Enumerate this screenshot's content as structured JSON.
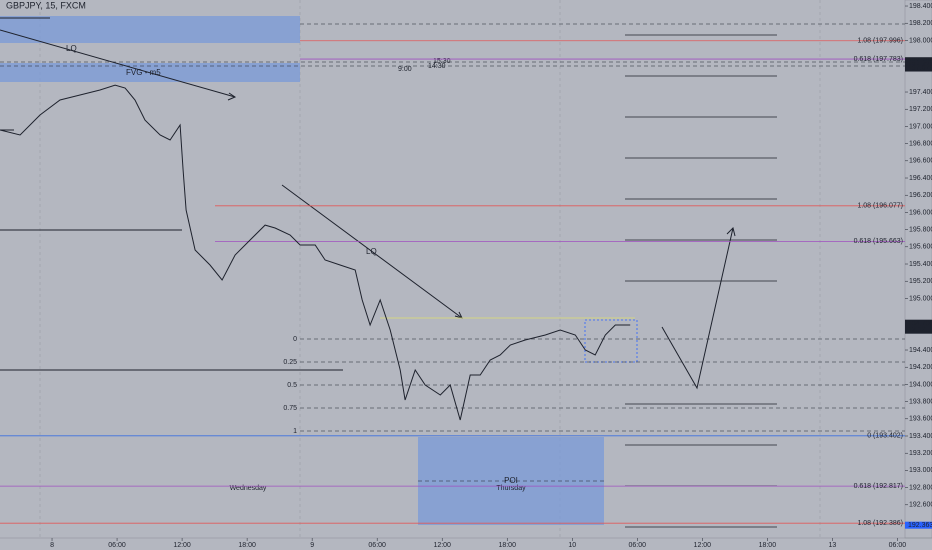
{
  "chart_data": {
    "type": "line",
    "title": "GBPJPY, 15, FXCM",
    "color": "#1e222d",
    "x": [
      -4.8,
      -2.95,
      -1.11,
      0.74,
      2.58,
      4.43,
      5.82,
      6.74,
      7.66,
      8.58,
      9.97,
      10.89,
      11.82,
      12.09,
      12.37,
      13.2,
      14.58,
      15.69,
      16.89,
      18.28,
      19.66,
      20.58,
      21.97,
      22.89,
      24.28,
      25.2,
      26.58,
      27.97,
      28.62,
      29.35,
      30.28,
      31.2,
      32.12,
      32.58,
      33.51,
      34.43,
      35.82,
      36.74,
      37.66,
      38.58,
      39.51,
      40.43,
      41.35,
      42.28,
      43.66,
      45.51,
      46.89,
      48.28,
      49.2,
      50.12,
      51.05,
      51.97,
      53.35
    ],
    "values": [
      196.958,
      196.9,
      197.133,
      197.307,
      197.365,
      197.423,
      197.481,
      197.447,
      197.307,
      197.074,
      196.9,
      196.842,
      197.016,
      196.493,
      196.028,
      195.563,
      195.388,
      195.214,
      195.505,
      195.679,
      195.853,
      195.819,
      195.737,
      195.621,
      195.621,
      195.447,
      195.388,
      195.33,
      194.981,
      194.691,
      194.981,
      194.633,
      194.167,
      193.819,
      194.167,
      193.993,
      193.877,
      193.993,
      193.586,
      194.109,
      194.109,
      194.284,
      194.342,
      194.458,
      194.516,
      194.574,
      194.633,
      194.574,
      194.4,
      194.342,
      194.574,
      194.691,
      194.691
    ],
    "xlim": [
      -4.8,
      78.7
    ],
    "ylim": [
      192.214,
      198.47
    ],
    "xticks": [
      {
        "value": 0,
        "label": "8"
      },
      {
        "value": 6,
        "label": "06:00"
      },
      {
        "value": 12,
        "label": "12:00"
      },
      {
        "value": 18,
        "label": "18:00"
      },
      {
        "value": 24,
        "label": "9"
      },
      {
        "value": 30,
        "label": "06:00"
      },
      {
        "value": 36,
        "label": "12:00"
      },
      {
        "value": 42,
        "label": "18:00"
      },
      {
        "value": 48,
        "label": "10"
      },
      {
        "value": 54,
        "label": "06:00"
      },
      {
        "value": 60,
        "label": "12:00"
      },
      {
        "value": 66,
        "label": "18:00"
      },
      {
        "value": 72,
        "label": "13"
      },
      {
        "value": 78,
        "label": "06:00"
      }
    ],
    "yticks": [
      {
        "value": 198.4,
        "label": "198.400"
      },
      {
        "value": 198.2,
        "label": "198.200"
      },
      {
        "value": 198,
        "label": "198.000"
      },
      {
        "value": 197.4,
        "label": "197.400"
      },
      {
        "value": 197.2,
        "label": "197.200"
      },
      {
        "value": 197,
        "label": "197.000"
      },
      {
        "value": 196.8,
        "label": "196.800"
      },
      {
        "value": 196.6,
        "label": "196.600"
      },
      {
        "value": 196.4,
        "label": "196.400"
      },
      {
        "value": 196.2,
        "label": "196.200"
      },
      {
        "value": 196,
        "label": "196.000"
      },
      {
        "value": 195.8,
        "label": "195.800"
      },
      {
        "value": 195.6,
        "label": "195.600"
      },
      {
        "value": 195.4,
        "label": "195.400"
      },
      {
        "value": 195.2,
        "label": "195.200"
      },
      {
        "value": 195,
        "label": "195.000"
      },
      {
        "value": 194.4,
        "label": "194.400"
      },
      {
        "value": 194.2,
        "label": "194.200"
      },
      {
        "value": 194,
        "label": "194.000"
      },
      {
        "value": 193.8,
        "label": "193.800"
      },
      {
        "value": 193.6,
        "label": "193.600"
      },
      {
        "value": 193.4,
        "label": "193.400"
      },
      {
        "value": 193.2,
        "label": "193.200"
      },
      {
        "value": 193,
        "label": "193.000"
      },
      {
        "value": 192.8,
        "label": "192.800"
      },
      {
        "value": 192.6,
        "label": "192.600"
      }
    ],
    "levels": [
      {
        "value": 197.996,
        "label": "1.08 (197.996)",
        "color": "#e05a5a"
      },
      {
        "value": 197.783,
        "label": "0.618 (197.783)",
        "color": "#a050c0"
      },
      {
        "value": 196.077,
        "label": "1.08 (196.077)",
        "color": "#e05a5a"
      },
      {
        "value": 195.663,
        "label": "0.618 (195.663)",
        "color": "#a050c0"
      },
      {
        "value": 193.402,
        "label": "0 (193.402)",
        "color": "#3a70e0"
      },
      {
        "value": 192.817,
        "label": "0.618 (192.817)",
        "color": "#a050c0"
      },
      {
        "value": 192.386,
        "label": "1.08 (192.386)",
        "color": "#e05a5a"
      }
    ],
    "price_tags": [
      {
        "value": 197.764,
        "label": "197.764",
        "color": "#1e222d"
      },
      {
        "value": 197.721,
        "label": "197.721",
        "color": "#1e222d"
      },
      {
        "value": 197.679,
        "label": "197.679",
        "color": "#1e222d"
      },
      {
        "value": 194.706,
        "label": "194.706",
        "color": "#1e222d"
      },
      {
        "value": 192.363,
        "label": "192.363",
        "color": "#2962ff"
      }
    ],
    "countdown": "12:12",
    "fib_marks": [
      {
        "value": 194.528,
        "label": "0"
      },
      {
        "value": 194.261,
        "label": "0.25"
      },
      {
        "value": 193.993,
        "label": "0.5"
      },
      {
        "value": 193.726,
        "label": "0.75"
      },
      {
        "value": 193.458,
        "label": "1"
      }
    ],
    "annotations": [
      "LQ",
      "FVG - m5",
      "LQ",
      "POI",
      "Thursday",
      "Wednesday",
      "9:00",
      "15:30",
      "14:30"
    ]
  }
}
